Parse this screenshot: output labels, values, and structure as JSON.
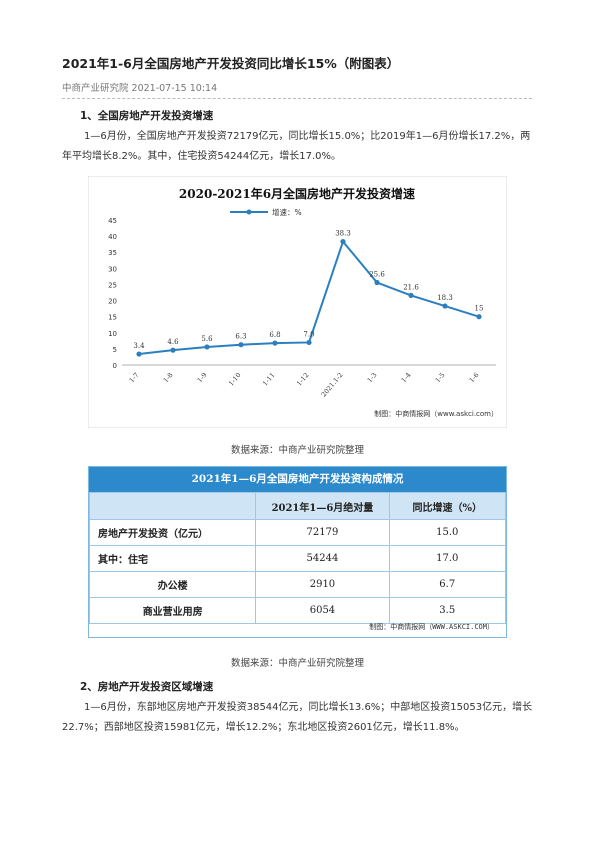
{
  "article": {
    "title": "2021年1-6月全国房地产开发投资同比增长15%（附图表）",
    "meta": "中商产业研究院 2021-07-15 10:14",
    "section1_heading": "1、全国房地产开发投资增速",
    "section1_text": "1—6月份，全国房地产开发投资72179亿元，同比增长15.0%；比2019年1—6月份增长17.2%，两年平均增长8.2%。其中，住宅投资54244亿元，增长17.0%。",
    "source1": "数据来源：中商产业研究院整理",
    "source2": "数据来源：中商产业研究院整理",
    "section2_heading": "2、房地产开发投资区域增速",
    "section2_text": "1—6月份，东部地区房地产开发投资38544亿元，同比增长13.6%；中部地区投资15053亿元，增长22.7%；西部地区投资15981亿元，增长12.2%；东北地区投资2601亿元，增长11.8%。"
  },
  "chart_data": {
    "type": "line",
    "title": "2020-2021年6月全国房地产开发投资增速",
    "legend": "增速：%",
    "legend_position": "top",
    "categories": [
      "1-7",
      "1-8",
      "1-9",
      "1-10",
      "1-11",
      "1-12",
      "2021.1-2",
      "1-3",
      "1-4",
      "1-5",
      "1-6"
    ],
    "series": [
      {
        "name": "增速：%",
        "values": [
          3.4,
          4.6,
          5.6,
          6.3,
          6.8,
          7.0,
          38.3,
          25.6,
          21.6,
          18.3,
          15
        ]
      }
    ],
    "data_labels": [
      "3.4",
      "4.6",
      "5.6",
      "6.3",
      "6.8",
      "7.0",
      "38.3",
      "25.6",
      "21.6",
      "18.3",
      "15"
    ],
    "y_ticks": [
      "0",
      "5",
      "10",
      "15",
      "20",
      "25",
      "30",
      "35",
      "40",
      "45"
    ],
    "ylim": [
      0,
      45
    ],
    "grid": false,
    "credit": "制图：中商情报网（www.askci.com）",
    "colors": {
      "line": "#2b7fc0",
      "marker": "#2b7fc0"
    }
  },
  "table": {
    "title": "2021年1—6月全国房地产开发投资构成情况",
    "headers": [
      "",
      "2021年1—6月绝对量",
      "同比增速（%）"
    ],
    "rows": [
      [
        "房地产开发投资（亿元）",
        "72179",
        "15.0"
      ],
      [
        "其中：住宅",
        "54244",
        "17.0"
      ],
      [
        "办公楼",
        "2910",
        "6.7"
      ],
      [
        "商业营业用房",
        "6054",
        "3.5"
      ]
    ],
    "credit": "制图：中商情报网（WWW.ASKCI.COM）",
    "colors": {
      "header_bar": "#2b89cc",
      "column_header": "#cfe5f5"
    }
  }
}
